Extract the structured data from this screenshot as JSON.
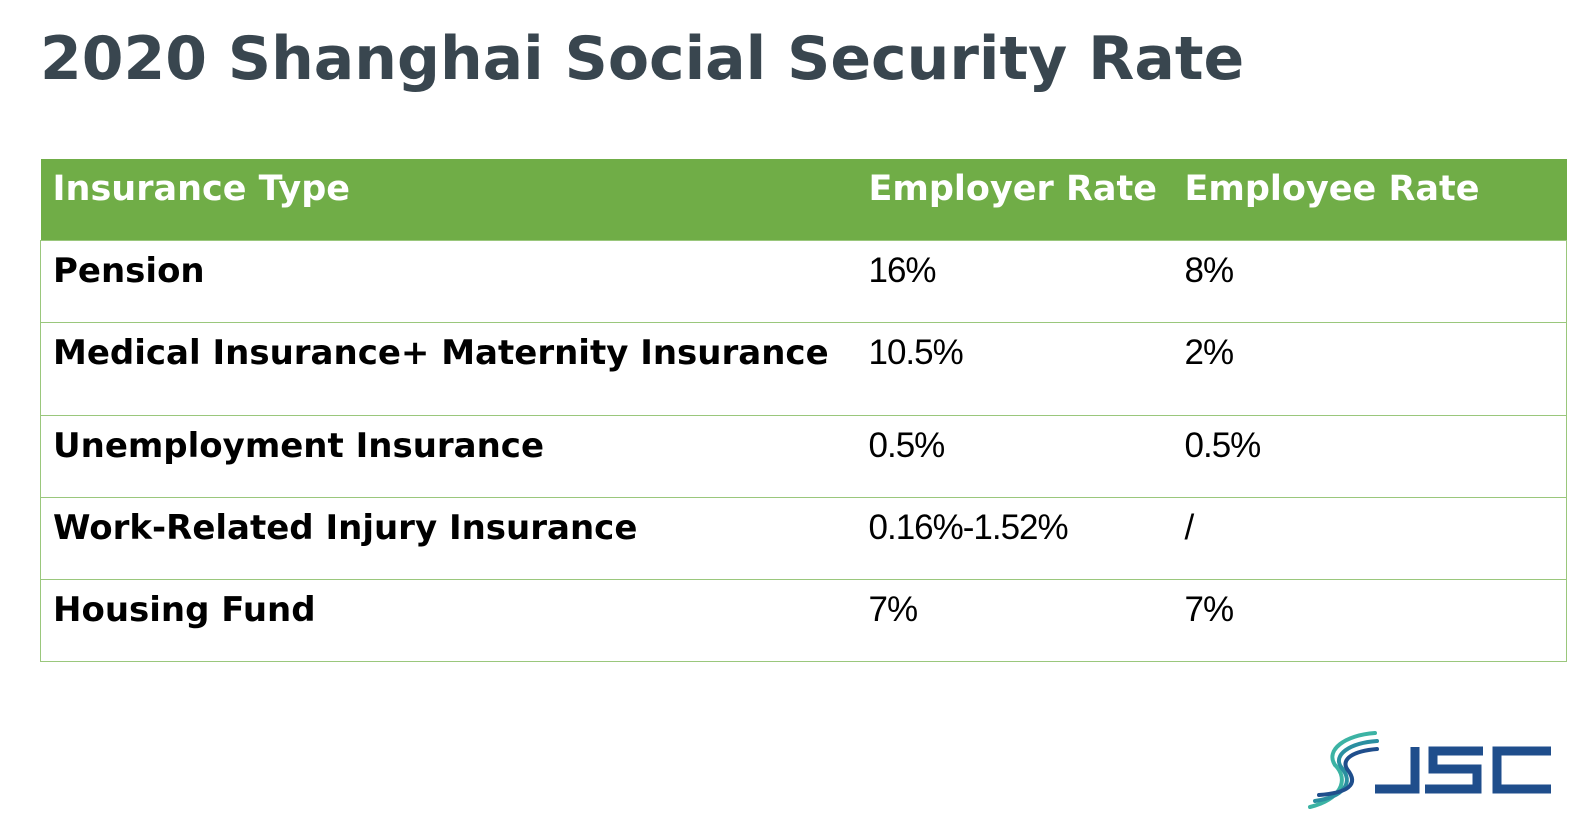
{
  "title": "2020 Shanghai Social Security Rate",
  "table": {
    "headers": [
      "Insurance Type",
      "Employer Rate",
      "Employee Rate"
    ],
    "rows": [
      [
        "Pension",
        "16%",
        "8%"
      ],
      [
        "Medical Insurance+ Maternity Insurance",
        "10.5%",
        "2%"
      ],
      [
        "Unemployment Insurance",
        "0.5%",
        "0.5%"
      ],
      [
        "Work-Related Injury Insurance",
        "0.16%-1.52%",
        "/"
      ],
      [
        "Housing Fund",
        "7%",
        "7%"
      ]
    ]
  },
  "logo": {
    "text": "JSC",
    "colors": {
      "primary": "#1f4e8c",
      "accent": "#3cb3a4"
    }
  },
  "colors": {
    "header_bg": "#70ad47",
    "title": "#39464f"
  }
}
